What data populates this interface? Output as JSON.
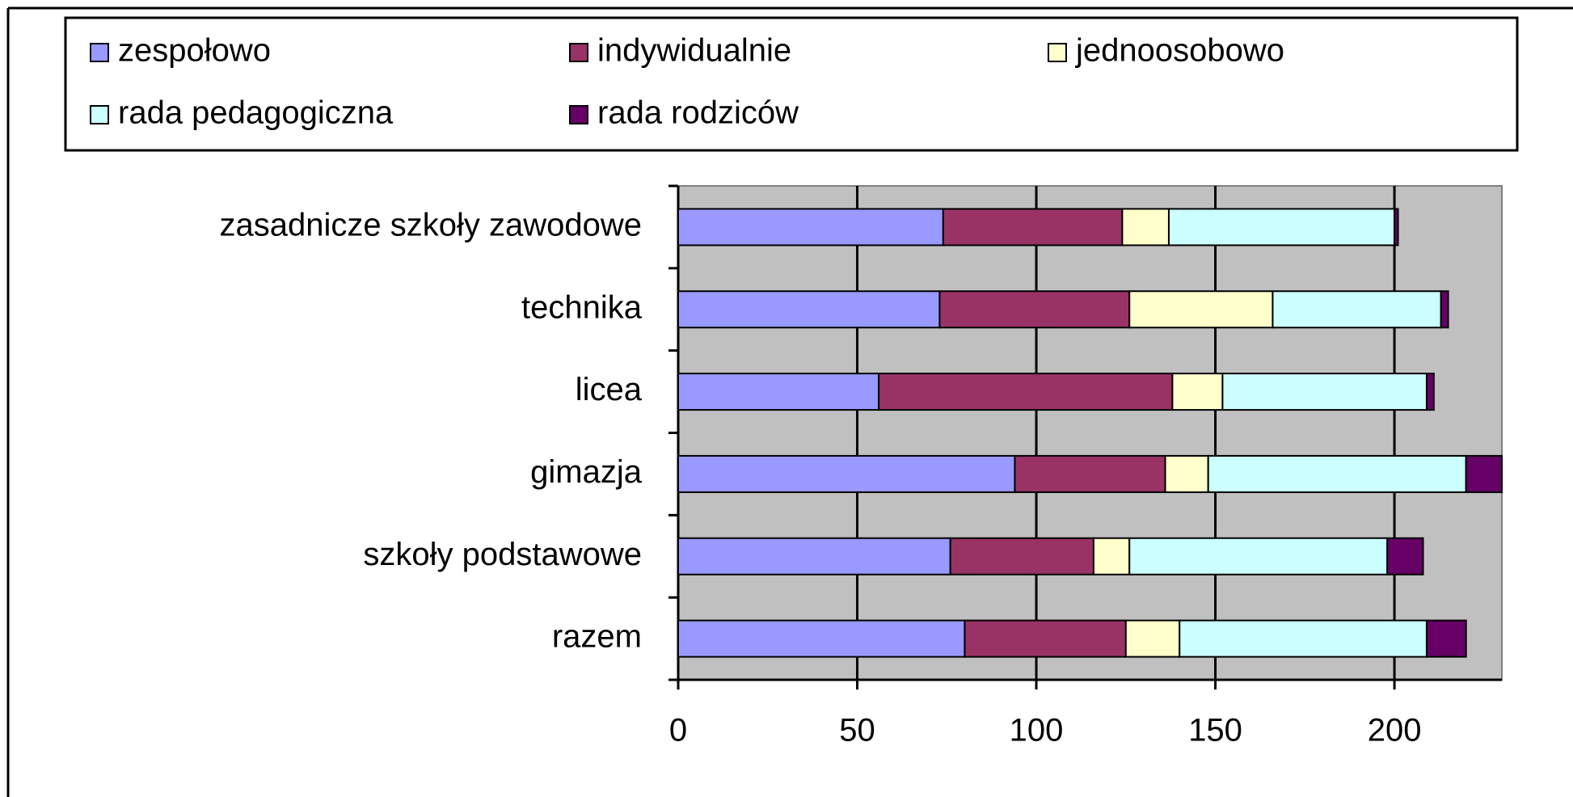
{
  "chart_data": {
    "type": "bar",
    "orientation": "horizontal",
    "stacked": true,
    "categories": [
      "razem",
      "szkoły podstawowe",
      "gimazja",
      "licea",
      "technika",
      "zasadnicze szkoły zawodowe"
    ],
    "series": [
      {
        "name": "zespołowo",
        "color": "#9999ff",
        "values": [
          80,
          76,
          94,
          56,
          73,
          74
        ]
      },
      {
        "name": "indywidualnie",
        "color": "#993366",
        "values": [
          45,
          40,
          42,
          82,
          53,
          50
        ]
      },
      {
        "name": "jednoosobowo",
        "color": "#ffffcc",
        "values": [
          15,
          10,
          12,
          14,
          40,
          13
        ]
      },
      {
        "name": "rada pedagogiczna",
        "color": "#ccffff",
        "values": [
          69,
          72,
          72,
          57,
          47,
          63
        ]
      },
      {
        "name": "rada rodziców",
        "color": "#660066",
        "values": [
          11,
          10,
          10,
          2,
          2,
          1
        ]
      }
    ],
    "xlim": [
      0,
      230
    ],
    "xticks": [
      0,
      50,
      100,
      150,
      200
    ],
    "grid": true,
    "legend": "top",
    "plot_background": "#c0c0c0"
  }
}
